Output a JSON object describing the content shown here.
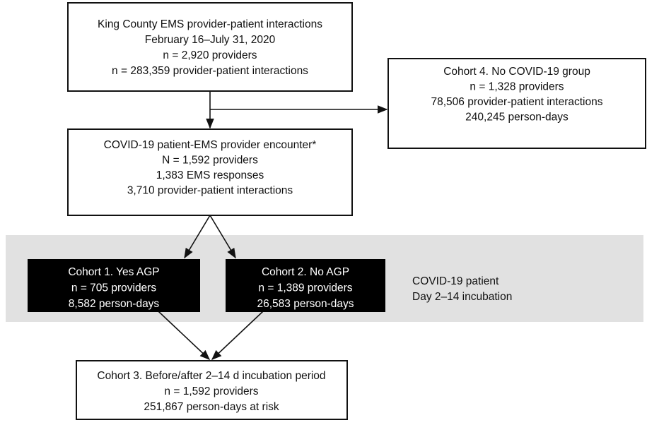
{
  "nodes": [
    {
      "lines": [
        "King County EMS provider-patient interactions",
        "February 16–July 31, 2020",
        "n = 2,920 providers",
        "n = 283,359 provider-patient interactions"
      ]
    },
    {
      "lines": [
        "Cohort 4. No COVID-19 group",
        "n = 1,328 providers",
        "78,506 provider-patient interactions",
        "240,245 person-days"
      ]
    },
    {
      "lines": [
        "COVID-19 patient-EMS provider encounter*",
        "N = 1,592 providers",
        "1,383 EMS responses",
        "3,710 provider-patient interactions"
      ]
    },
    {
      "lines": [
        "Cohort 1. Yes AGP",
        "n = 705 providers",
        "8,582 person-days"
      ]
    },
    {
      "lines": [
        "Cohort 2. No AGP",
        "n = 1,389 providers",
        "26,583 person-days"
      ]
    },
    {
      "lines": [
        "Cohort 3. Before/after 2–14 d incubation period",
        "n = 1,592 providers",
        "251,867 person-days at risk"
      ]
    }
  ],
  "band_label": [
    "COVID-19 patient",
    "Day 2–14 incubation"
  ]
}
